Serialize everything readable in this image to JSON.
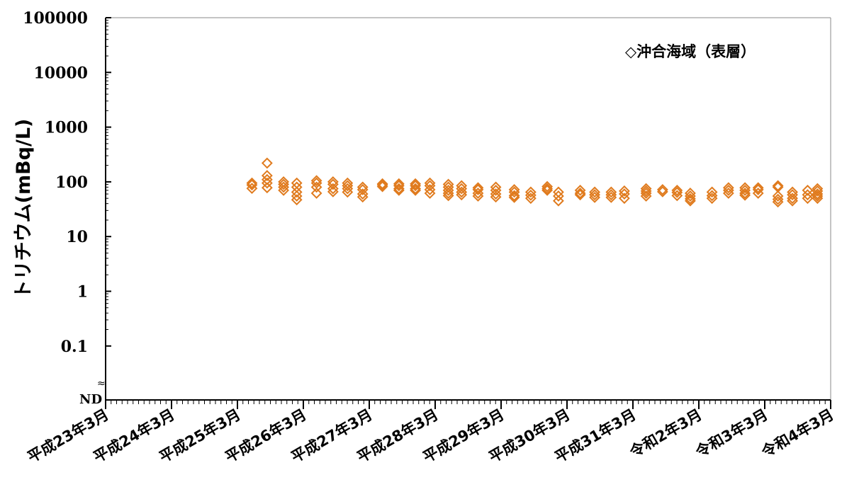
{
  "chart_data": {
    "type": "scatter",
    "title": "",
    "ylabel": "トリチウム(mBq/L)",
    "xlabel": "",
    "y_scale": "log",
    "ylim": [
      0.01,
      100000
    ],
    "y_ticks": [
      {
        "label": "100000",
        "value": 100000
      },
      {
        "label": "10000",
        "value": 10000
      },
      {
        "label": "1000",
        "value": 1000
      },
      {
        "label": "100",
        "value": 100
      },
      {
        "label": "10",
        "value": 10
      },
      {
        "label": "1",
        "value": 1
      },
      {
        "label": "0.1",
        "value": 0.1
      }
    ],
    "nd_label": "ND",
    "axis_break_symbol": "≈",
    "x_ticks": [
      "平成23年3月",
      "平成24年3月",
      "平成25年3月",
      "平成26年3月",
      "平成27年3月",
      "平成28年3月",
      "平成29年3月",
      "平成30年3月",
      "平成31年3月",
      "令和2年3月",
      "令和3年3月",
      "令和4年3月"
    ],
    "x_minor_ticks_per_major": 12,
    "legend": {
      "position": "top-right",
      "entries": [
        {
          "label": "◇沖合海域（表層）"
        }
      ]
    },
    "marker": {
      "shape": "diamond",
      "filled": false,
      "color": "#E07B1E"
    },
    "grid": false,
    "x_unit": "years after 平成23年3月",
    "series": [
      {
        "name": "沖合海域（表層）",
        "points": [
          {
            "x": 2.22,
            "y": 95
          },
          {
            "x": 2.22,
            "y": 88
          },
          {
            "x": 2.22,
            "y": 76
          },
          {
            "x": 2.45,
            "y": 220
          },
          {
            "x": 2.45,
            "y": 130
          },
          {
            "x": 2.45,
            "y": 110
          },
          {
            "x": 2.45,
            "y": 95
          },
          {
            "x": 2.45,
            "y": 78
          },
          {
            "x": 2.7,
            "y": 100
          },
          {
            "x": 2.7,
            "y": 90
          },
          {
            "x": 2.7,
            "y": 80
          },
          {
            "x": 2.7,
            "y": 70
          },
          {
            "x": 2.9,
            "y": 95
          },
          {
            "x": 2.9,
            "y": 80
          },
          {
            "x": 2.9,
            "y": 65
          },
          {
            "x": 2.9,
            "y": 55
          },
          {
            "x": 2.9,
            "y": 47
          },
          {
            "x": 3.2,
            "y": 105
          },
          {
            "x": 3.2,
            "y": 95
          },
          {
            "x": 3.2,
            "y": 80
          },
          {
            "x": 3.2,
            "y": 62
          },
          {
            "x": 3.45,
            "y": 100
          },
          {
            "x": 3.45,
            "y": 90
          },
          {
            "x": 3.45,
            "y": 75
          },
          {
            "x": 3.45,
            "y": 66
          },
          {
            "x": 3.67,
            "y": 95
          },
          {
            "x": 3.67,
            "y": 85
          },
          {
            "x": 3.67,
            "y": 75
          },
          {
            "x": 3.67,
            "y": 65
          },
          {
            "x": 3.9,
            "y": 80
          },
          {
            "x": 3.9,
            "y": 72
          },
          {
            "x": 3.9,
            "y": 60
          },
          {
            "x": 3.9,
            "y": 53
          },
          {
            "x": 4.2,
            "y": 92
          },
          {
            "x": 4.2,
            "y": 88
          },
          {
            "x": 4.2,
            "y": 82
          },
          {
            "x": 4.45,
            "y": 92
          },
          {
            "x": 4.45,
            "y": 85
          },
          {
            "x": 4.45,
            "y": 75
          },
          {
            "x": 4.45,
            "y": 70
          },
          {
            "x": 4.7,
            "y": 92
          },
          {
            "x": 4.7,
            "y": 85
          },
          {
            "x": 4.7,
            "y": 75
          },
          {
            "x": 4.7,
            "y": 70
          },
          {
            "x": 4.92,
            "y": 95
          },
          {
            "x": 4.92,
            "y": 85
          },
          {
            "x": 4.92,
            "y": 72
          },
          {
            "x": 4.92,
            "y": 62
          },
          {
            "x": 5.2,
            "y": 90
          },
          {
            "x": 5.2,
            "y": 80
          },
          {
            "x": 5.2,
            "y": 70
          },
          {
            "x": 5.2,
            "y": 62
          },
          {
            "x": 5.2,
            "y": 56
          },
          {
            "x": 5.4,
            "y": 85
          },
          {
            "x": 5.4,
            "y": 75
          },
          {
            "x": 5.4,
            "y": 65
          },
          {
            "x": 5.4,
            "y": 58
          },
          {
            "x": 5.65,
            "y": 78
          },
          {
            "x": 5.65,
            "y": 72
          },
          {
            "x": 5.65,
            "y": 62
          },
          {
            "x": 5.65,
            "y": 55
          },
          {
            "x": 5.92,
            "y": 80
          },
          {
            "x": 5.92,
            "y": 70
          },
          {
            "x": 5.92,
            "y": 60
          },
          {
            "x": 5.92,
            "y": 53
          },
          {
            "x": 6.2,
            "y": 72
          },
          {
            "x": 6.2,
            "y": 65
          },
          {
            "x": 6.2,
            "y": 56
          },
          {
            "x": 6.2,
            "y": 52
          },
          {
            "x": 6.45,
            "y": 65
          },
          {
            "x": 6.45,
            "y": 57
          },
          {
            "x": 6.45,
            "y": 50
          },
          {
            "x": 6.7,
            "y": 82
          },
          {
            "x": 6.7,
            "y": 75
          },
          {
            "x": 6.7,
            "y": 70
          },
          {
            "x": 6.87,
            "y": 65
          },
          {
            "x": 6.87,
            "y": 55
          },
          {
            "x": 6.87,
            "y": 45
          },
          {
            "x": 7.2,
            "y": 70
          },
          {
            "x": 7.2,
            "y": 62
          },
          {
            "x": 7.2,
            "y": 58
          },
          {
            "x": 7.42,
            "y": 65
          },
          {
            "x": 7.42,
            "y": 58
          },
          {
            "x": 7.42,
            "y": 52
          },
          {
            "x": 7.67,
            "y": 65
          },
          {
            "x": 7.67,
            "y": 58
          },
          {
            "x": 7.67,
            "y": 52
          },
          {
            "x": 7.87,
            "y": 68
          },
          {
            "x": 7.87,
            "y": 60
          },
          {
            "x": 7.87,
            "y": 50
          },
          {
            "x": 8.2,
            "y": 75
          },
          {
            "x": 8.2,
            "y": 68
          },
          {
            "x": 8.2,
            "y": 62
          },
          {
            "x": 8.2,
            "y": 55
          },
          {
            "x": 8.45,
            "y": 72
          },
          {
            "x": 8.45,
            "y": 66
          },
          {
            "x": 8.67,
            "y": 70
          },
          {
            "x": 8.67,
            "y": 64
          },
          {
            "x": 8.67,
            "y": 56
          },
          {
            "x": 8.87,
            "y": 62
          },
          {
            "x": 8.87,
            "y": 55
          },
          {
            "x": 8.87,
            "y": 49
          },
          {
            "x": 8.87,
            "y": 45
          },
          {
            "x": 9.2,
            "y": 65
          },
          {
            "x": 9.2,
            "y": 56
          },
          {
            "x": 9.2,
            "y": 50
          },
          {
            "x": 9.45,
            "y": 78
          },
          {
            "x": 9.45,
            "y": 70
          },
          {
            "x": 9.45,
            "y": 62
          },
          {
            "x": 9.7,
            "y": 78
          },
          {
            "x": 9.7,
            "y": 70
          },
          {
            "x": 9.7,
            "y": 62
          },
          {
            "x": 9.7,
            "y": 57
          },
          {
            "x": 9.9,
            "y": 78
          },
          {
            "x": 9.9,
            "y": 72
          },
          {
            "x": 9.9,
            "y": 62
          },
          {
            "x": 10.2,
            "y": 85
          },
          {
            "x": 10.2,
            "y": 80
          },
          {
            "x": 10.2,
            "y": 55
          },
          {
            "x": 10.2,
            "y": 48
          },
          {
            "x": 10.2,
            "y": 43
          },
          {
            "x": 10.42,
            "y": 65
          },
          {
            "x": 10.42,
            "y": 58
          },
          {
            "x": 10.42,
            "y": 50
          },
          {
            "x": 10.42,
            "y": 45
          },
          {
            "x": 10.65,
            "y": 70
          },
          {
            "x": 10.65,
            "y": 58
          },
          {
            "x": 10.65,
            "y": 50
          },
          {
            "x": 10.8,
            "y": 75
          },
          {
            "x": 10.8,
            "y": 68
          },
          {
            "x": 10.8,
            "y": 60
          },
          {
            "x": 10.8,
            "y": 55
          },
          {
            "x": 10.8,
            "y": 50
          }
        ]
      }
    ]
  }
}
